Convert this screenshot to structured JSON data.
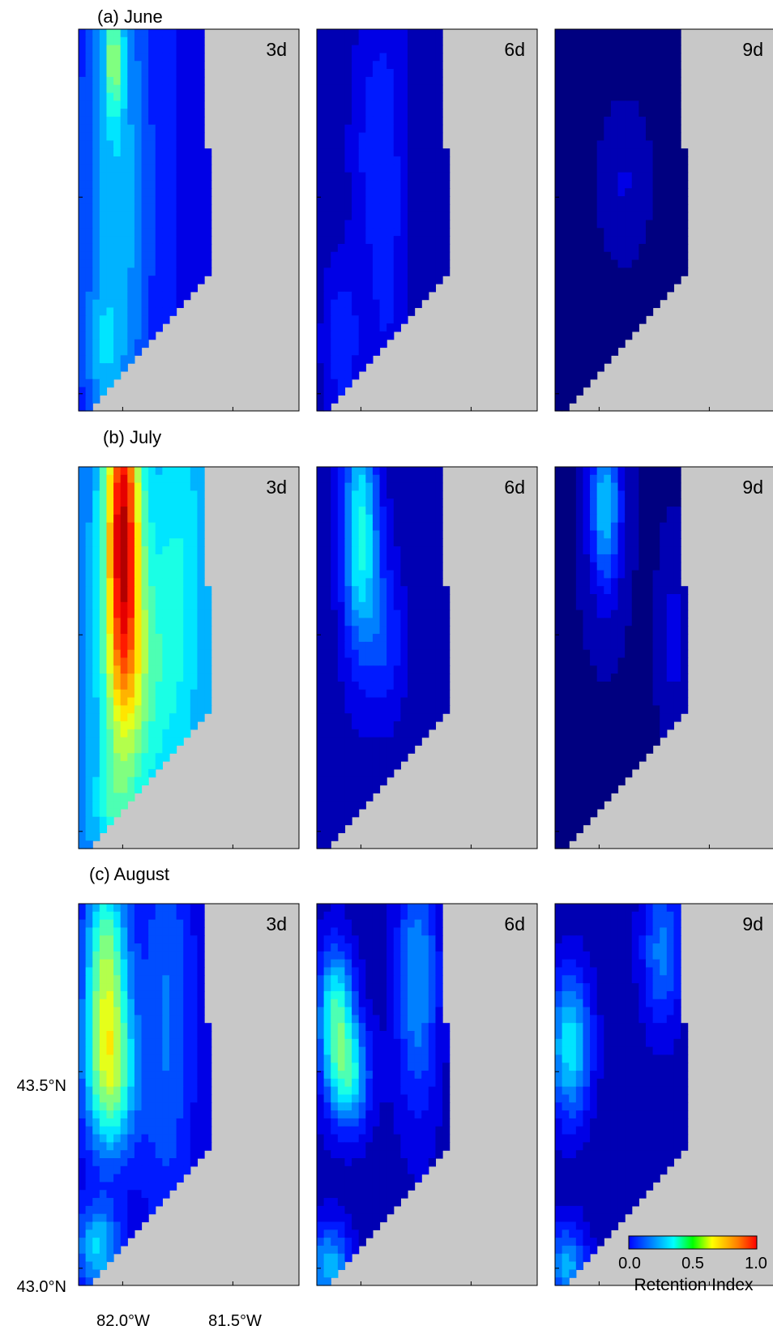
{
  "chart_data": {
    "type": "heatmap",
    "rows": [
      {
        "label": "(a) June",
        "panels": [
          {
            "label": "3d",
            "blobs": [
              [
                0.28,
                0.92,
                0.05,
                0.1,
                0.25
              ],
              [
                0.3,
                0.55,
                0.18,
                0.6,
                0.2
              ],
              [
                0.18,
                0.15,
                0.08,
                0.12,
                0.08
              ]
            ],
            "base": 0.12
          },
          {
            "label": "6d",
            "blobs": [
              [
                0.55,
                0.55,
                0.12,
                0.45,
                0.1
              ],
              [
                0.2,
                0.18,
                0.1,
                0.14,
                0.12
              ],
              [
                0.38,
                0.7,
                0.1,
                0.2,
                0.05
              ]
            ],
            "base": 0.05
          },
          {
            "label": "9d",
            "blobs": [
              [
                0.55,
                0.6,
                0.1,
                0.1,
                0.06
              ]
            ],
            "base": 0.02
          }
        ]
      },
      {
        "label": "(b) July",
        "panels": [
          {
            "label": "3d",
            "blobs": [
              [
                0.35,
                0.85,
                0.1,
                0.35,
                0.65
              ],
              [
                0.45,
                0.45,
                0.18,
                0.25,
                0.2
              ],
              [
                0.8,
                0.7,
                0.15,
                0.4,
                0.12
              ],
              [
                0.25,
                0.1,
                0.1,
                0.1,
                0.1
              ]
            ],
            "base": 0.25
          },
          {
            "label": "6d",
            "blobs": [
              [
                0.35,
                0.82,
                0.1,
                0.22,
                0.35
              ],
              [
                0.55,
                0.55,
                0.1,
                0.14,
                0.12
              ]
            ],
            "base": 0.05
          },
          {
            "label": "9d",
            "blobs": [
              [
                0.4,
                0.9,
                0.09,
                0.16,
                0.3
              ],
              [
                0.95,
                0.55,
                0.07,
                0.15,
                0.08
              ]
            ],
            "base": 0.02
          }
        ]
      },
      {
        "label": "(c) August",
        "panels": [
          {
            "label": "3d",
            "blobs": [
              [
                0.22,
                0.85,
                0.12,
                0.18,
                0.4
              ],
              [
                0.25,
                0.55,
                0.14,
                0.15,
                0.42
              ],
              [
                0.7,
                0.7,
                0.15,
                0.4,
                0.15
              ],
              [
                0.15,
                0.1,
                0.12,
                0.08,
                0.25
              ]
            ],
            "base": 0.08
          },
          {
            "label": "6d",
            "blobs": [
              [
                0.15,
                0.72,
                0.1,
                0.12,
                0.35
              ],
              [
                0.25,
                0.55,
                0.12,
                0.1,
                0.32
              ],
              [
                0.8,
                0.8,
                0.12,
                0.25,
                0.22
              ],
              [
                0.1,
                0.05,
                0.12,
                0.08,
                0.25
              ]
            ],
            "base": 0.05
          },
          {
            "label": "9d",
            "blobs": [
              [
                0.12,
                0.63,
                0.12,
                0.14,
                0.32
              ],
              [
                0.85,
                0.88,
                0.12,
                0.15,
                0.2
              ],
              [
                0.1,
                0.05,
                0.12,
                0.08,
                0.25
              ]
            ],
            "base": 0.04
          }
        ]
      }
    ],
    "y_ticks": [
      "43.5°N",
      "43.0°N"
    ],
    "x_ticks": [
      "82.0°W",
      "81.5°W"
    ],
    "colorbar": {
      "label": "Retention Index",
      "min": 0.0,
      "max": 1.0,
      "ticks": [
        "0.0",
        "0.5",
        "1.0"
      ]
    },
    "colors": {
      "land": "#c8c8c8"
    }
  }
}
